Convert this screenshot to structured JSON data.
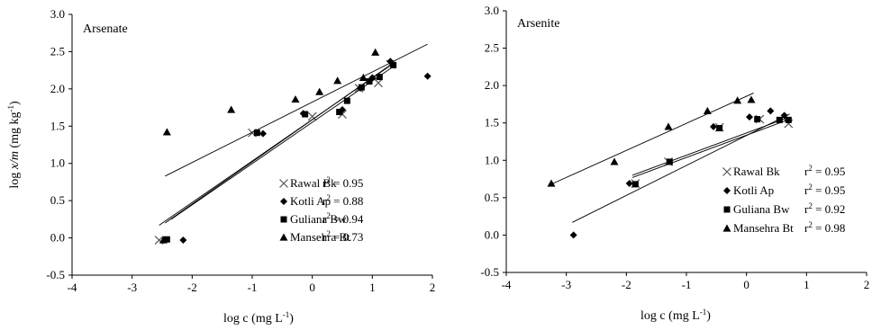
{
  "figure": {
    "ylabel": "log x/m (mg kg⁻¹)",
    "xlabel": "log c (mg L⁻¹)"
  },
  "chart_data": [
    {
      "type": "scatter",
      "title": "Arsenate",
      "xlabel": "log c (mg L⁻¹)",
      "ylabel": "log x/m (mg kg⁻¹)",
      "xlim": [
        -4,
        2
      ],
      "ylim": [
        -0.5,
        3.0
      ],
      "xticks": [
        "-4",
        "-3",
        "-2",
        "-1",
        "0",
        "1",
        "2"
      ],
      "yticks": [
        "-0.5",
        "0.0",
        "0.5",
        "1.0",
        "1.5",
        "2.0",
        "2.5",
        "3.0"
      ],
      "grid": false,
      "legend_position": "bottom-right",
      "series": [
        {
          "name": "Rawal Bk",
          "r2": "r² = 0.95",
          "marker": "x",
          "points": [
            [
              -2.55,
              -0.03
            ],
            [
              -1.0,
              1.41
            ],
            [
              0.0,
              1.63
            ],
            [
              0.5,
              1.66
            ],
            [
              0.78,
              2.01
            ],
            [
              1.1,
              2.08
            ],
            [
              1.3,
              2.33
            ]
          ],
          "fit": [
            [
              -2.45,
              0.2
            ],
            [
              1.35,
              2.35
            ]
          ]
        },
        {
          "name": "Kotli Ap",
          "r2": "r² = 0.88",
          "marker": "diamond",
          "points": [
            [
              -2.15,
              -0.03
            ],
            [
              -0.82,
              1.4
            ],
            [
              -0.15,
              1.67
            ],
            [
              0.5,
              1.72
            ],
            [
              0.8,
              2.01
            ],
            [
              1.0,
              2.15
            ],
            [
              1.3,
              2.37
            ],
            [
              1.92,
              2.17
            ]
          ],
          "fit": [
            [
              -2.35,
              0.25
            ],
            [
              1.35,
              2.3
            ]
          ]
        },
        {
          "name": "Guliana Bw",
          "r2": "r² = 0.94",
          "marker": "square",
          "points": [
            [
              -2.42,
              -0.02
            ],
            [
              -0.92,
              1.41
            ],
            [
              -0.12,
              1.66
            ],
            [
              0.45,
              1.69
            ],
            [
              0.58,
              1.84
            ],
            [
              0.82,
              2.02
            ],
            [
              0.95,
              2.1
            ],
            [
              1.12,
              2.16
            ],
            [
              1.35,
              2.32
            ]
          ],
          "fit": [
            [
              -2.55,
              0.17
            ],
            [
              1.35,
              2.34
            ]
          ]
        },
        {
          "name": "Mansehra Bt",
          "r2": "r² = 0.73",
          "marker": "triangle",
          "points": [
            [
              -2.48,
              -0.03
            ],
            [
              -2.42,
              1.42
            ],
            [
              -1.35,
              1.72
            ],
            [
              -0.28,
              1.86
            ],
            [
              0.12,
              1.96
            ],
            [
              0.42,
              2.11
            ],
            [
              0.85,
              2.15
            ],
            [
              1.05,
              2.49
            ]
          ],
          "fit": [
            [
              -2.45,
              0.83
            ],
            [
              1.92,
              2.6
            ]
          ]
        }
      ]
    },
    {
      "type": "scatter",
      "title": "Arsenite",
      "xlabel": "log c (mg L⁻¹)",
      "ylabel": "",
      "xlim": [
        -4,
        2
      ],
      "ylim": [
        -0.5,
        3.0
      ],
      "xticks": [
        "-4",
        "-3",
        "-2",
        "-1",
        "0",
        "1",
        "2"
      ],
      "yticks": [
        "-0.5",
        "0.0",
        "0.5",
        "1.0",
        "1.5",
        "2.0",
        "2.5",
        "3.0"
      ],
      "grid": false,
      "legend_position": "bottom-right",
      "series": [
        {
          "name": "Rawal Bk",
          "r2": "r² = 0.95",
          "marker": "x",
          "points": [
            [
              -1.85,
              0.69
            ],
            [
              -1.3,
              0.98
            ],
            [
              -0.45,
              1.44
            ],
            [
              0.22,
              1.55
            ],
            [
              0.7,
              1.49
            ]
          ],
          "fit": [
            [
              -1.9,
              0.8
            ],
            [
              0.72,
              1.58
            ]
          ]
        },
        {
          "name": "Kotli Ap",
          "r2": "r² = 0.95",
          "marker": "diamond",
          "points": [
            [
              -2.88,
              0.0
            ],
            [
              -1.95,
              0.69
            ],
            [
              -0.55,
              1.45
            ],
            [
              0.05,
              1.58
            ],
            [
              0.4,
              1.66
            ],
            [
              0.63,
              1.6
            ]
          ],
          "fit": [
            [
              -2.9,
              0.17
            ],
            [
              0.72,
              1.62
            ]
          ]
        },
        {
          "name": "Guliana Bw",
          "r2": "r² = 0.92",
          "marker": "square",
          "points": [
            [
              -1.85,
              0.68
            ],
            [
              -1.28,
              0.98
            ],
            [
              -0.45,
              1.43
            ],
            [
              0.18,
              1.55
            ],
            [
              0.55,
              1.54
            ],
            [
              0.7,
              1.54
            ]
          ],
          "fit": [
            [
              -1.9,
              0.77
            ],
            [
              0.72,
              1.55
            ]
          ]
        },
        {
          "name": "Mansehra Bt",
          "r2": "r² = 0.98",
          "marker": "triangle",
          "points": [
            [
              -3.25,
              0.69
            ],
            [
              -2.2,
              0.98
            ],
            [
              -1.3,
              1.45
            ],
            [
              -0.65,
              1.66
            ],
            [
              -0.15,
              1.8
            ],
            [
              0.08,
              1.81
            ]
          ],
          "fit": [
            [
              -3.25,
              0.68
            ],
            [
              0.12,
              1.9
            ]
          ]
        }
      ]
    }
  ]
}
